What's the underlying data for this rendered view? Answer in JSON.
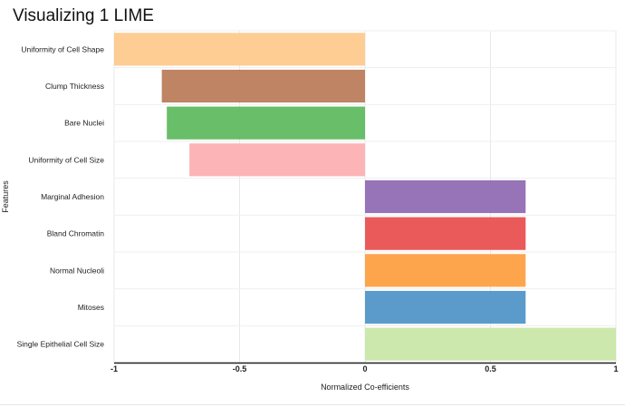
{
  "chart_data": {
    "type": "bar",
    "orientation": "horizontal",
    "title": "Visualizing 1 LIME",
    "xlabel": "Normalized Co-efficients",
    "ylabel": "Features",
    "xlim": [
      -1,
      1
    ],
    "xticks": [
      {
        "value": -1,
        "label": "-1"
      },
      {
        "value": -0.5,
        "label": "-0.5"
      },
      {
        "value": 0,
        "label": "0"
      },
      {
        "value": 0.5,
        "label": "0.5"
      },
      {
        "value": 1,
        "label": "1"
      }
    ],
    "grid": true,
    "categories": [
      "Uniformity of Cell Shape",
      "Clump Thickness",
      "Bare Nuclei",
      "Uniformity of Cell Size",
      "Marginal Adhesion",
      "Bland Chromatin",
      "Normal Nucleoli",
      "Mitoses",
      "Single Epithelial Cell Size"
    ],
    "values": [
      -1,
      -0.81,
      -0.79,
      -0.7,
      0.64,
      0.64,
      0.64,
      0.64,
      1
    ],
    "colors": [
      "#fdc98a",
      "#b97a57",
      "#5cb85c",
      "#fcaeb0",
      "#8e67b2",
      "#e84c4c",
      "#fd9d3e",
      "#4d93c7",
      "#c8e6a6"
    ]
  }
}
